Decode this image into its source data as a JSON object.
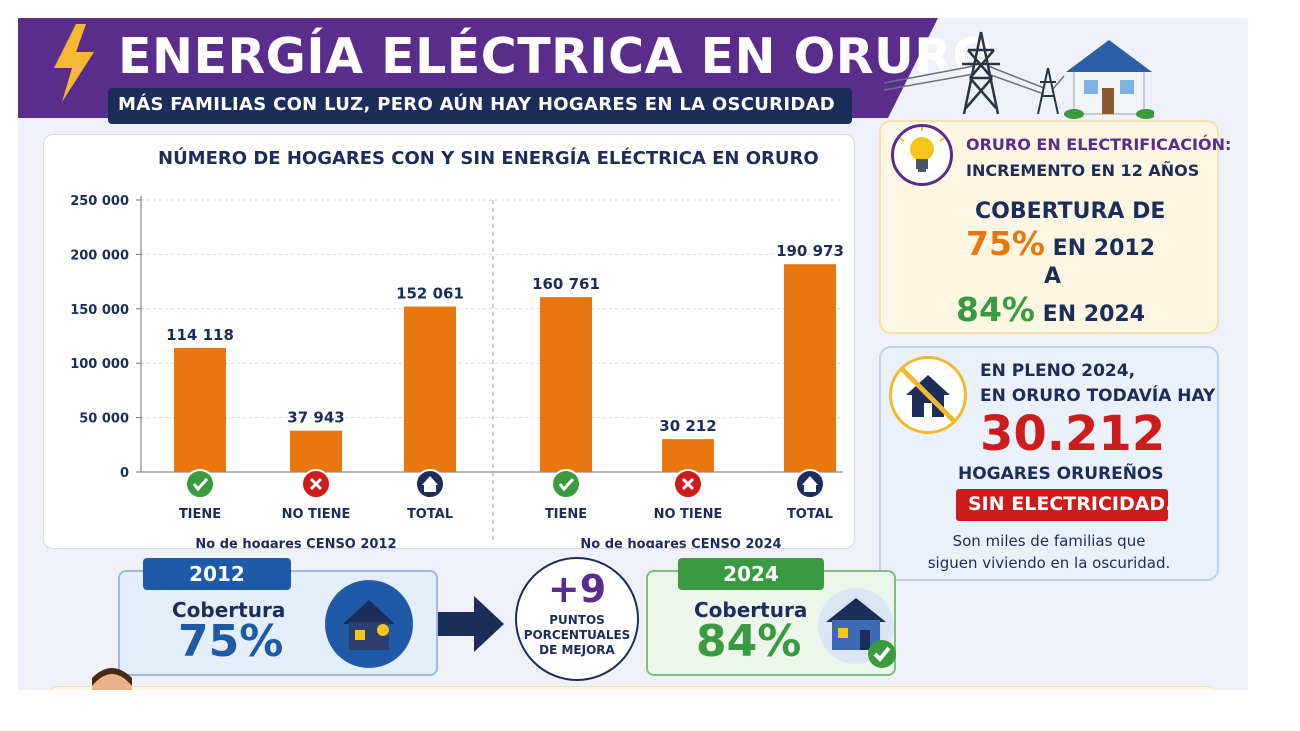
{
  "header": {
    "title": "ENERGÍA ELÉCTRICA EN ORURO",
    "subtitle": "MÁS FAMILIAS CON LUZ, PERO AÚN HAY HOGARES EN LA OSCURIDAD"
  },
  "colors": {
    "purple": "#5a2d8c",
    "navy": "#1c2d5a",
    "orange": "#e8780d",
    "green": "#3a9a3f",
    "red": "#cc1c1c",
    "blue": "#1f5aa6"
  },
  "chart_data": {
    "type": "bar",
    "title": "NÚMERO DE HOGARES CON Y SIN ENERGÍA ELÉCTRICA EN ORURO",
    "ylim": [
      0,
      250000
    ],
    "yticks": [
      0,
      50000,
      100000,
      150000,
      200000,
      250000
    ],
    "ytick_labels": [
      "0",
      "50 000",
      "100 000",
      "150 000",
      "200 000",
      "250 000"
    ],
    "grid": true,
    "bar_color": "#e8780d",
    "groups": [
      {
        "label": "No de hogares CENSO 2012",
        "categories": [
          "TIENE",
          "NO TIENE",
          "TOTAL"
        ],
        "values": [
          114118,
          37943,
          152061
        ],
        "value_labels": [
          "114 118",
          "37 943",
          "152 061"
        ],
        "icons": [
          "check-icon",
          "x-icon",
          "home-icon"
        ]
      },
      {
        "label": "No de hogares CENSO 2024",
        "categories": [
          "TIENE",
          "NO TIENE",
          "TOTAL"
        ],
        "values": [
          160761,
          30212,
          190973
        ],
        "value_labels": [
          "160 761",
          "30 212",
          "190 973"
        ],
        "icons": [
          "check-icon",
          "x-icon",
          "home-icon"
        ]
      }
    ]
  },
  "info_electrification": {
    "heading": "ORURO EN ELECTRIFICACIÓN:",
    "heading2": "INCREMENTO EN 12 AÑOS",
    "line1": "COBERTURA DE",
    "pct_2012": "75%",
    "year_2012": "EN 2012",
    "connector": "A",
    "pct_2024": "84%",
    "year_2024": "EN 2024",
    "icon": "lightbulb-icon"
  },
  "info_dark": {
    "line1": "EN PLENO 2024,",
    "line2": "EN ORURO TODAVÍA HAY",
    "big_number": "30.212",
    "line3": "HOGARES ORUREÑOS",
    "banner": "SIN ELECTRICIDAD.",
    "note1": "Son miles de familias que",
    "note2": "siguen viviendo en la oscuridad.",
    "icon": "no-home-icon"
  },
  "comparison": {
    "left": {
      "year": "2012",
      "label": "Cobertura",
      "value": "75%"
    },
    "middle": {
      "value": "+9",
      "line1": "PUNTOS",
      "line2": "PORCENTUALES",
      "line3": "DE MEJORA"
    },
    "right": {
      "year": "2024",
      "label": "Cobertura",
      "value": "84%"
    }
  }
}
